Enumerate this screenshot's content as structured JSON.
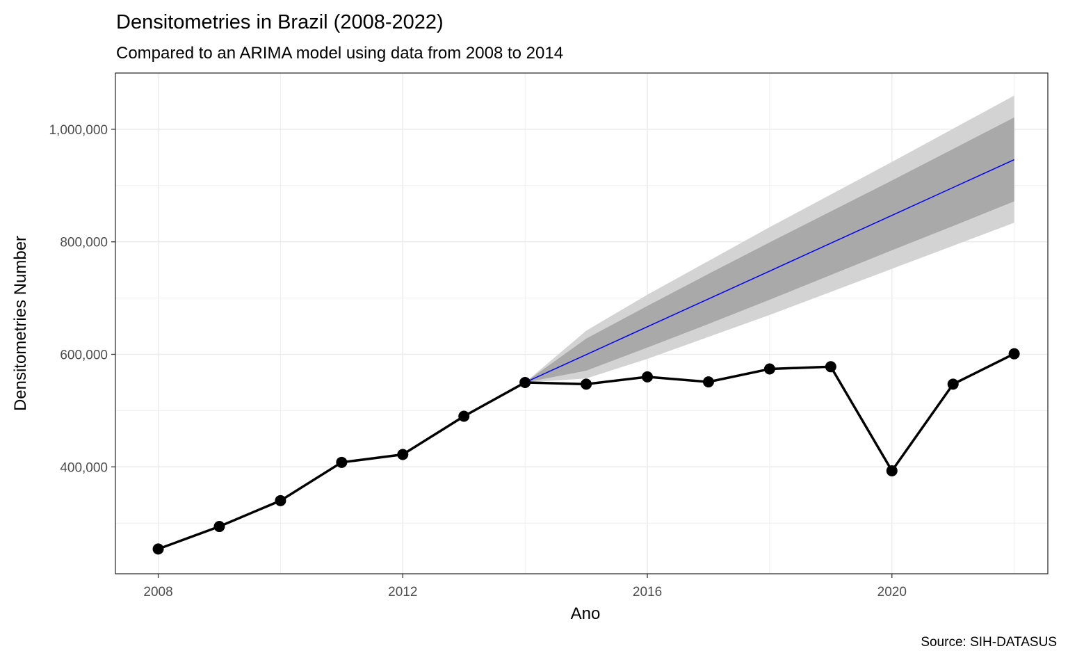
{
  "chart_data": {
    "type": "line",
    "title": "Densitometries in Brazil (2008-2022)",
    "subtitle": "Compared to an ARIMA model using data from 2008 to 2014",
    "xlabel": "Ano",
    "ylabel": "Densitometries Number",
    "caption": "Source: SIH-DATASUS",
    "x_ticks": [
      "2008",
      "2012",
      "2016",
      "2020"
    ],
    "y_ticks": [
      "400,000",
      "600,000",
      "800,000",
      "1,000,000"
    ],
    "xlim": [
      2007.3,
      2022.55
    ],
    "ylim": [
      210000,
      1100000
    ],
    "grid": true,
    "series": [
      {
        "values": [
          {
            "x": 2008,
            "y": 254000
          },
          {
            "x": 2009,
            "y": 294000
          },
          {
            "x": 2010,
            "y": 340000
          },
          {
            "x": 2011,
            "y": 408000
          },
          {
            "x": 2012,
            "y": 422000
          },
          {
            "x": 2013,
            "y": 490000
          },
          {
            "x": 2014,
            "y": 550000
          },
          {
            "x": 2015,
            "y": 547000
          },
          {
            "x": 2016,
            "y": 560000
          },
          {
            "x": 2017,
            "y": 551000
          },
          {
            "x": 2018,
            "y": 574000
          },
          {
            "x": 2019,
            "y": 578000
          },
          {
            "x": 2020,
            "y": 393000
          },
          {
            "x": 2021,
            "y": 547000
          },
          {
            "x": 2022,
            "y": 601000
          }
        ]
      }
    ],
    "forecast": {
      "x": [
        2014,
        2015,
        2016,
        2017,
        2018,
        2019,
        2020,
        2021,
        2022
      ],
      "mean": [
        550000,
        599500,
        649000,
        698500,
        748000,
        797500,
        847000,
        896500,
        946000
      ],
      "lower80": [
        550000,
        571000,
        612000,
        654000,
        697000,
        741000,
        785000,
        828000,
        872000
      ],
      "upper80": [
        550000,
        628000,
        686000,
        743000,
        799000,
        854000,
        909000,
        965000,
        1021000
      ],
      "lower95": [
        550000,
        557000,
        592000,
        631000,
        670000,
        711000,
        752000,
        793000,
        834000
      ],
      "upper95": [
        550000,
        642000,
        706000,
        766000,
        826000,
        884000,
        942000,
        1001000,
        1060000
      ]
    },
    "colors": {
      "observed": "#000000",
      "forecast_line": "#0000ff",
      "band95": "#d3d3d3",
      "band80": "#a9a9a9",
      "grid": "#ebebeb",
      "panel_border": "#333333"
    }
  }
}
